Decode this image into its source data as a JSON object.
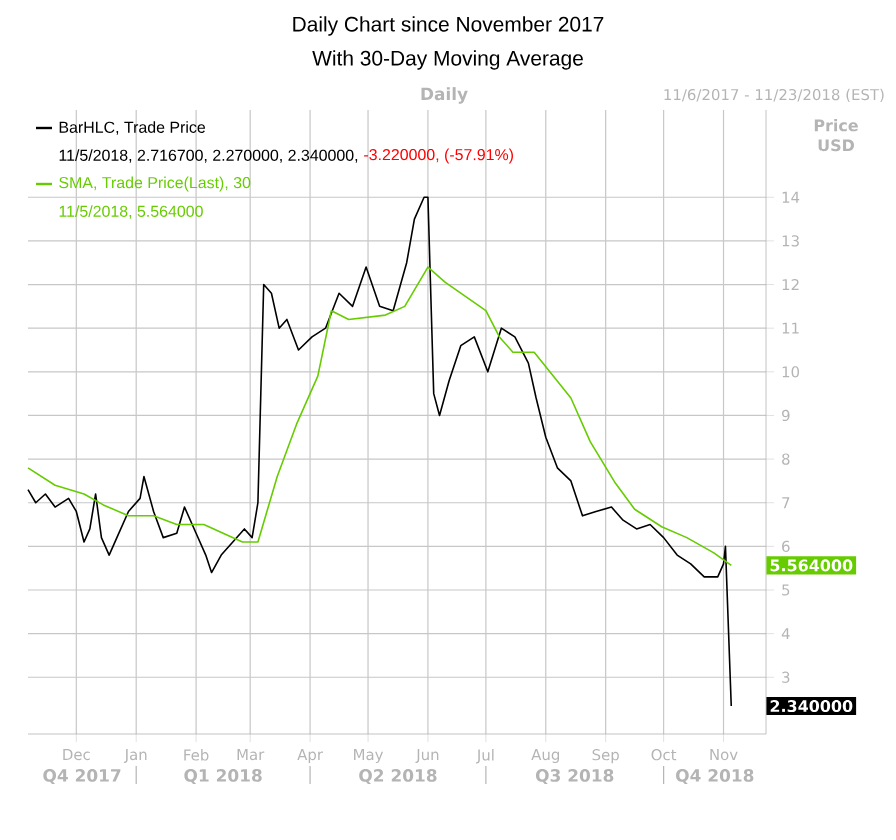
{
  "chart_data": {
    "type": "line",
    "title": "Daily Chart since November 2017",
    "subtitle": "With 30-Day Moving Average",
    "ylabel": "Price USD",
    "xlim": [
      "2017-11-06",
      "2018-11-23"
    ],
    "xticks": [
      {
        "value": "2017-12-01",
        "label": "Dec"
      },
      {
        "value": "2018-01-01",
        "label": "Jan"
      },
      {
        "value": "2018-02-01",
        "label": "Feb"
      },
      {
        "value": "2018-03-01",
        "label": "Mar"
      },
      {
        "value": "2018-04-01",
        "label": "Apr"
      },
      {
        "value": "2018-05-01",
        "label": "May"
      },
      {
        "value": "2018-06-01",
        "label": "Jun"
      },
      {
        "value": "2018-07-01",
        "label": "Jul"
      },
      {
        "value": "2018-08-01",
        "label": "Aug"
      },
      {
        "value": "2018-09-01",
        "label": "Sep"
      },
      {
        "value": "2018-10-01",
        "label": "Oct"
      },
      {
        "value": "2018-11-01",
        "label": "Nov"
      }
    ],
    "ylim": [
      1.7,
      16
    ],
    "yticks": [
      3,
      4,
      5,
      6,
      7,
      8,
      9,
      10,
      11,
      12,
      13,
      14
    ],
    "grid": true,
    "legend": "top left",
    "marker": "none",
    "line_style": "solid",
    "series": [
      {
        "name": "BarHLC, Trade Price",
        "color": "#000000",
        "x": [
          "2017-11-06",
          "2017-11-10",
          "2017-11-15",
          "2017-11-20",
          "2017-11-27",
          "2017-12-01",
          "2017-12-05",
          "2017-12-08",
          "2017-12-11",
          "2017-12-14",
          "2017-12-18",
          "2017-12-22",
          "2017-12-28",
          "2018-01-03",
          "2018-01-05",
          "2018-01-10",
          "2018-01-15",
          "2018-01-22",
          "2018-01-26",
          "2018-02-01",
          "2018-02-06",
          "2018-02-09",
          "2018-02-14",
          "2018-02-20",
          "2018-02-26",
          "2018-03-02",
          "2018-03-05",
          "2018-03-08",
          "2018-03-12",
          "2018-03-16",
          "2018-03-20",
          "2018-03-26",
          "2018-04-02",
          "2018-04-09",
          "2018-04-16",
          "2018-04-23",
          "2018-04-30",
          "2018-05-07",
          "2018-05-14",
          "2018-05-21",
          "2018-05-25",
          "2018-05-30",
          "2018-06-01",
          "2018-06-04",
          "2018-06-07",
          "2018-06-12",
          "2018-06-18",
          "2018-06-25",
          "2018-07-02",
          "2018-07-09",
          "2018-07-16",
          "2018-07-23",
          "2018-07-27",
          "2018-08-01",
          "2018-08-07",
          "2018-08-14",
          "2018-08-20",
          "2018-08-27",
          "2018-09-04",
          "2018-09-10",
          "2018-09-17",
          "2018-09-24",
          "2018-10-01",
          "2018-10-08",
          "2018-10-15",
          "2018-10-22",
          "2018-10-29",
          "2018-11-01",
          "2018-11-02",
          "2018-11-05"
        ],
        "values": [
          7.3,
          7.0,
          7.2,
          6.9,
          7.1,
          6.8,
          6.1,
          6.4,
          7.2,
          6.2,
          5.8,
          6.2,
          6.8,
          7.1,
          7.6,
          6.8,
          6.2,
          6.3,
          6.9,
          6.3,
          5.8,
          5.4,
          5.8,
          6.1,
          6.4,
          6.2,
          7.0,
          12.0,
          11.8,
          11.0,
          11.2,
          10.5,
          10.8,
          11.0,
          11.8,
          11.5,
          12.4,
          11.5,
          11.4,
          12.5,
          13.5,
          14.0,
          14.0,
          9.5,
          9.0,
          9.8,
          10.6,
          10.8,
          10.0,
          11.0,
          10.8,
          10.2,
          9.4,
          8.5,
          7.8,
          7.5,
          6.7,
          6.8,
          6.9,
          6.6,
          6.4,
          6.5,
          6.2,
          5.8,
          5.6,
          5.3,
          5.3,
          5.6,
          6.0,
          2.34
        ]
      },
      {
        "name": "SMA, Trade Price(Last), 30",
        "color": "#66cc00",
        "x": [
          "2017-11-06",
          "2017-11-20",
          "2017-12-05",
          "2017-12-15",
          "2017-12-28",
          "2018-01-10",
          "2018-01-22",
          "2018-02-05",
          "2018-02-15",
          "2018-02-25",
          "2018-03-05",
          "2018-03-15",
          "2018-03-25",
          "2018-04-05",
          "2018-04-12",
          "2018-04-21",
          "2018-05-10",
          "2018-05-20",
          "2018-06-01",
          "2018-06-10",
          "2018-07-01",
          "2018-07-08",
          "2018-07-15",
          "2018-07-26",
          "2018-08-14",
          "2018-08-24",
          "2018-09-06",
          "2018-09-16",
          "2018-09-30",
          "2018-10-13",
          "2018-10-27",
          "2018-11-05"
        ],
        "values": [
          7.8,
          7.4,
          7.2,
          6.95,
          6.7,
          6.7,
          6.5,
          6.5,
          6.3,
          6.1,
          6.1,
          7.6,
          8.8,
          9.9,
          11.4,
          11.2,
          11.3,
          11.5,
          12.4,
          12.05,
          11.4,
          10.8,
          10.45,
          10.45,
          9.4,
          8.4,
          7.45,
          6.85,
          6.45,
          6.2,
          5.85,
          5.564
        ]
      }
    ],
    "annotations": [
      "Daily",
      "11/6/2017 - 11/23/2018 (EST)",
      "11/5/2018, 2.716700, 2.270000, 2.340000,",
      "-3.220000, (-57.91%)",
      "11/5/2018, 5.564000",
      "5.564000",
      "2.340000",
      "Q4 2017",
      "Q1 2018",
      "Q2 2018",
      "Q3 2018",
      "Q4 2018"
    ]
  }
}
